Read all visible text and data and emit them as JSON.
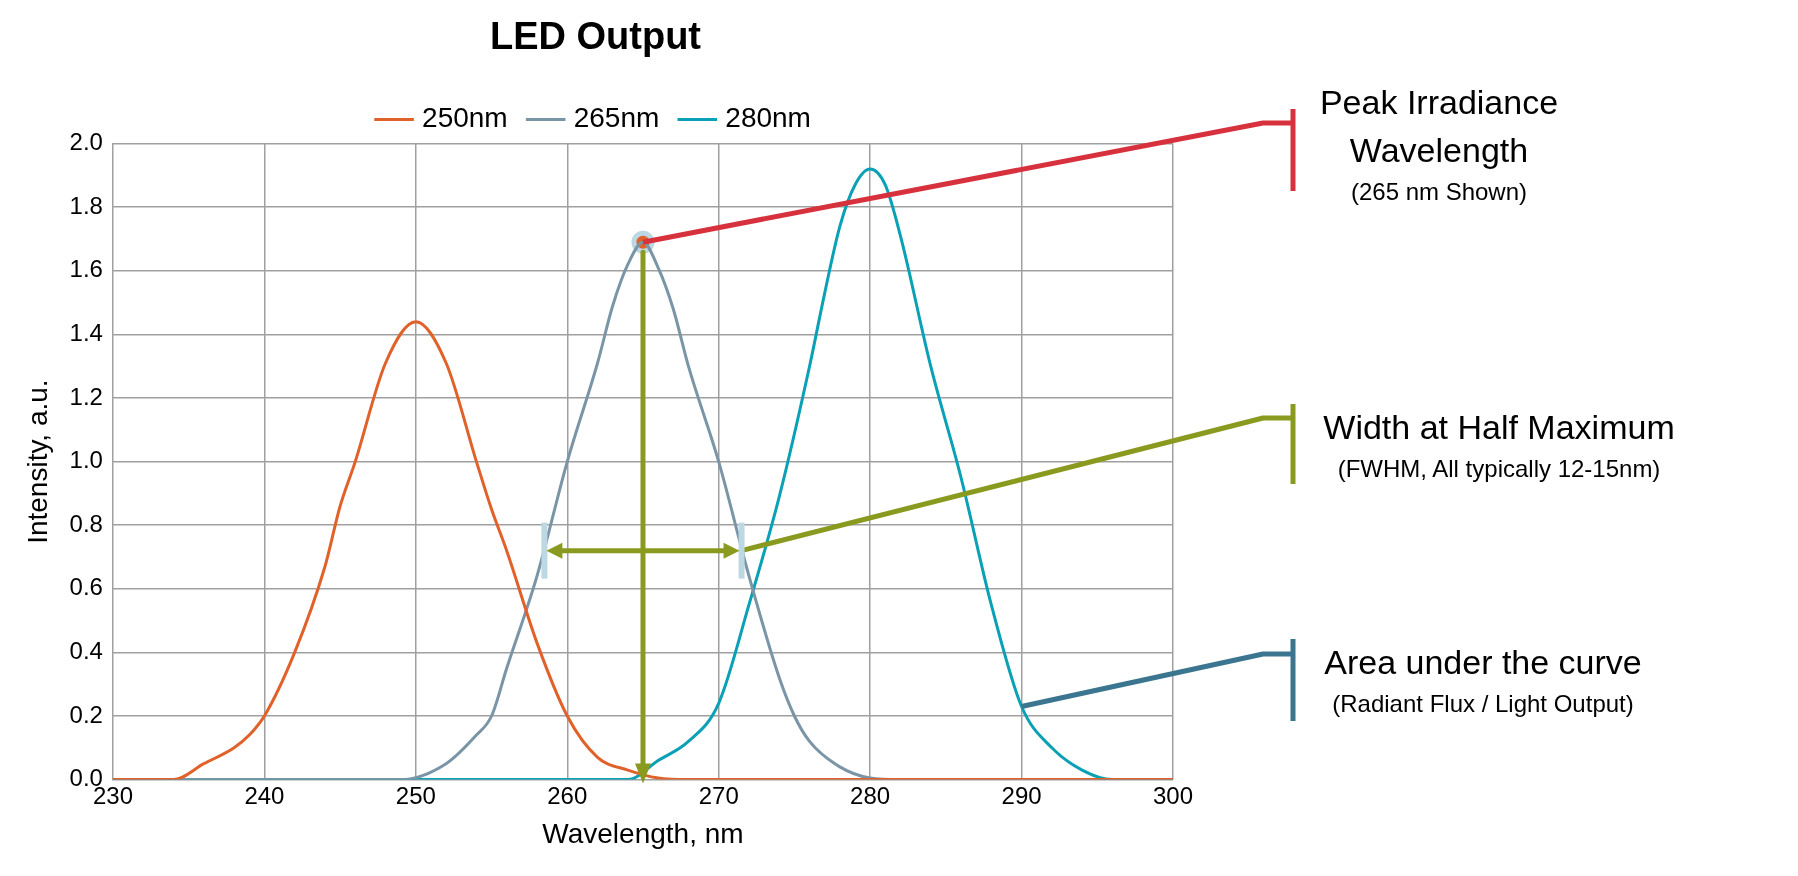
{
  "chart_data": {
    "type": "line",
    "title": "LED Output",
    "xlabel": "Wavelength, nm",
    "ylabel": "Intensity, a.u.",
    "series": [
      {
        "name": "250nm",
        "color": "#e0622a",
        "x": [
          230,
          234,
          236,
          238,
          239,
          240,
          242,
          244,
          245,
          246,
          248,
          250,
          252,
          254,
          255,
          256,
          258,
          260,
          262,
          264,
          266,
          268,
          300
        ],
        "values": [
          0,
          0,
          0.05,
          0.1,
          0.14,
          0.2,
          0.4,
          0.67,
          0.86,
          1.0,
          1.31,
          1.44,
          1.31,
          1.0,
          0.85,
          0.72,
          0.43,
          0.2,
          0.07,
          0.03,
          0.005,
          0,
          0
        ]
      },
      {
        "name": "265nm",
        "color": "#7a95a6",
        "x": [
          230,
          249,
          252,
          254,
          255,
          256,
          258,
          260,
          262,
          263,
          264,
          265,
          266,
          267,
          268,
          270,
          272,
          274,
          275,
          276,
          278,
          280,
          282,
          300
        ],
        "values": [
          0,
          0,
          0.05,
          0.14,
          0.2,
          0.35,
          0.64,
          1.0,
          1.31,
          1.49,
          1.62,
          1.69,
          1.61,
          1.48,
          1.3,
          1.0,
          0.64,
          0.32,
          0.2,
          0.12,
          0.04,
          0.005,
          0,
          0
        ]
      },
      {
        "name": "280nm",
        "color": "#0aa0b5",
        "x": [
          230,
          264,
          266,
          268,
          270,
          272,
          274,
          276,
          277,
          278,
          279,
          280,
          281,
          282,
          284,
          286,
          288,
          290,
          292,
          294,
          296,
          300
        ],
        "values": [
          0,
          0,
          0.06,
          0.12,
          0.24,
          0.55,
          0.89,
          1.3,
          1.53,
          1.74,
          1.87,
          1.92,
          1.87,
          1.71,
          1.3,
          0.95,
          0.55,
          0.23,
          0.1,
          0.03,
          0,
          0
        ]
      },
      {
        "type": "scatter",
        "color": "#e0622a",
        "marker": "circle",
        "x": [
          265
        ],
        "values": [
          1.69
        ]
      }
    ],
    "xlim": [
      230,
      300
    ],
    "xticks": [
      230,
      240,
      250,
      260,
      270,
      280,
      290,
      300
    ],
    "ylim": [
      0,
      2
    ],
    "yticks": [
      {
        "value": 0,
        "label": "0.0"
      },
      0.2,
      0.4,
      0.6,
      0.8,
      {
        "value": 1,
        "label": "1.0"
      },
      1.2,
      1.4,
      1.6,
      1.8,
      {
        "value": 2,
        "label": "2.0"
      }
    ],
    "grid": true,
    "legend": "top",
    "marker": "none",
    "line_style": "solid",
    "ref_lines": [
      {
        "axis": "x",
        "value": 265,
        "color": "#8a9a1f"
      }
    ],
    "annotations": [
      {
        "text": "Peak Irradiance Wavelength",
        "x": 265,
        "y": 1.69
      },
      "(265 nm Shown)",
      {
        "text": "Width at Half Maximum",
        "x": 271.5,
        "y": 0.72
      },
      "(FWHM, All typically 12-15nm)",
      {
        "text": "Area under the curve",
        "x": 290,
        "y": 0.23
      },
      "(Radiant Flux / Light Output)"
    ]
  }
}
